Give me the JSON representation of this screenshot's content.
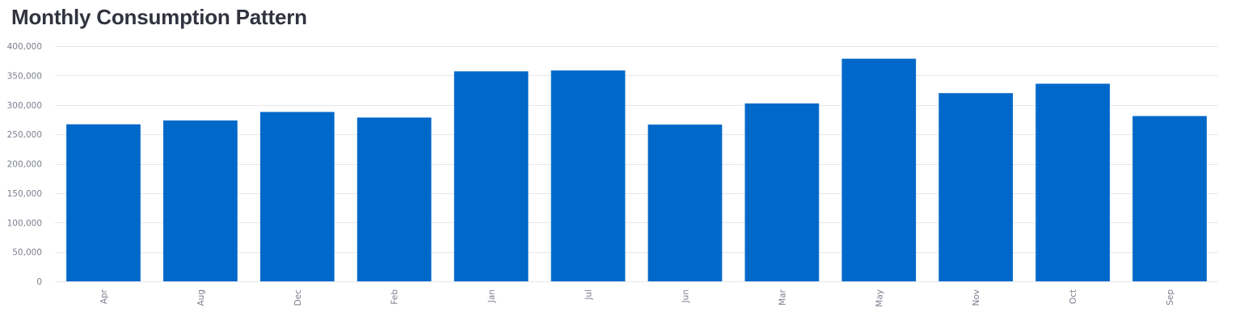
{
  "chart_data": {
    "type": "bar",
    "title": "Monthly Consumption Pattern",
    "xlabel": "",
    "ylabel": "",
    "categories": [
      "Apr",
      "Aug",
      "Dec",
      "Feb",
      "Jan",
      "Jul",
      "Jun",
      "Mar",
      "May",
      "Nov",
      "Oct",
      "Sep"
    ],
    "values": [
      267000,
      273500,
      288000,
      278500,
      357000,
      358500,
      266500,
      302500,
      378500,
      320000,
      336000,
      281000
    ],
    "ylim": [
      0,
      400000
    ],
    "yticks": [
      0,
      50000,
      100000,
      150000,
      200000,
      250000,
      300000,
      350000,
      400000
    ],
    "ytick_labels": [
      "0",
      "50,000",
      "100,000",
      "150,000",
      "200,000",
      "250,000",
      "300,000",
      "350,000",
      "400,000"
    ],
    "grid": true,
    "legend": "none",
    "bar_color": "#0068c9"
  }
}
